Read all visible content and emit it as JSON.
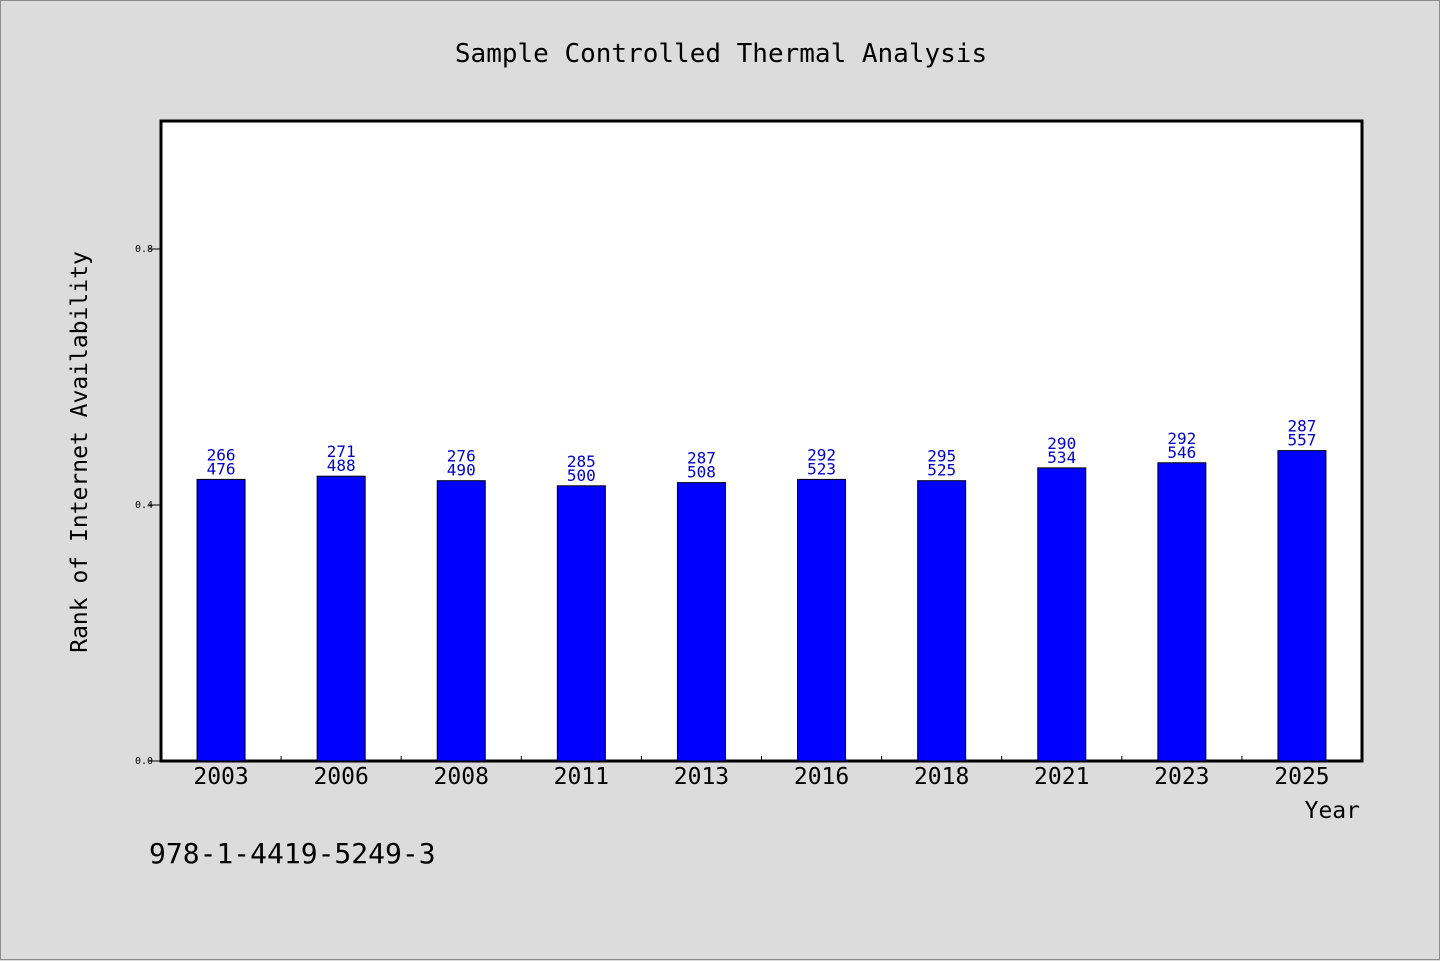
{
  "chart_data": {
    "type": "bar",
    "title": "Sample Controlled Thermal Analysis",
    "xlabel": "Year",
    "ylabel": "Rank of Internet Availability",
    "categories": [
      "2003",
      "2006",
      "2008",
      "2011",
      "2013",
      "2016",
      "2018",
      "2021",
      "2023",
      "2025"
    ],
    "values": [
      0.44,
      0.445,
      0.438,
      0.43,
      0.435,
      0.44,
      0.438,
      0.458,
      0.466,
      0.485
    ],
    "data_labels_top": [
      "266",
      "271",
      "276",
      "285",
      "287",
      "292",
      "295",
      "290",
      "292",
      "287"
    ],
    "data_labels_bottom": [
      "476",
      "488",
      "490",
      "500",
      "508",
      "523",
      "525",
      "534",
      "546",
      "557"
    ],
    "ylim": [
      0,
      1.0
    ],
    "yticks": [
      0.0,
      0.4,
      0.8
    ],
    "ytick_labels": [
      "0.0",
      "0.4",
      "0.8"
    ],
    "grid": false,
    "legend": "none",
    "colors": {
      "bar": "#0000ff",
      "bar_edge": "#000000",
      "data_label": "#0000cc",
      "plot_background": "#ffffff",
      "page_background": "#dcdcdc"
    }
  },
  "footnote": "978-1-4419-5249-3"
}
